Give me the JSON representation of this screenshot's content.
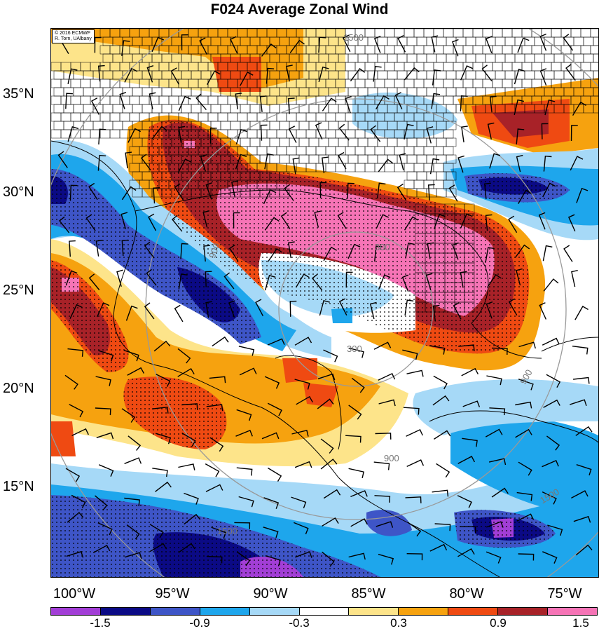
{
  "title": "F024 Average Zonal Wind",
  "credit": {
    "line1": "© 2016 ECMWF",
    "line2": "R. Torn, UAlbany"
  },
  "lat_labels": [
    "35°N",
    "30°N",
    "25°N",
    "20°N",
    "15°N"
  ],
  "lon_labels": [
    "100°W",
    "95°W",
    "90°W",
    "85°W",
    "80°W",
    "75°W"
  ],
  "contour_labels": [
    "300",
    "300",
    "900",
    "900",
    "1500",
    "1500",
    "900",
    "1500"
  ],
  "colorbar": {
    "colors": [
      "#a23ed6",
      "#0b0a85",
      "#3e55c7",
      "#1ea6ec",
      "#a6d9f7",
      "#ffffff",
      "#fde48a",
      "#f6a20f",
      "#ef4a12",
      "#a82228",
      "#f674b6"
    ],
    "tick_labels": [
      "-1.5",
      "-0.9",
      "-0.3",
      "0.3",
      "0.9",
      "1.5"
    ]
  },
  "palette": {
    "pink": "#f674b6",
    "darkred": "#a82228",
    "red": "#ef4a12",
    "orange": "#f6a20f",
    "yellow": "#fde48a",
    "white": "#ffffff",
    "lightblue": "#a6d9f7",
    "cyan": "#1ea6ec",
    "blue": "#3e55c7",
    "navy": "#0b0a85",
    "purple": "#a23ed6"
  }
}
